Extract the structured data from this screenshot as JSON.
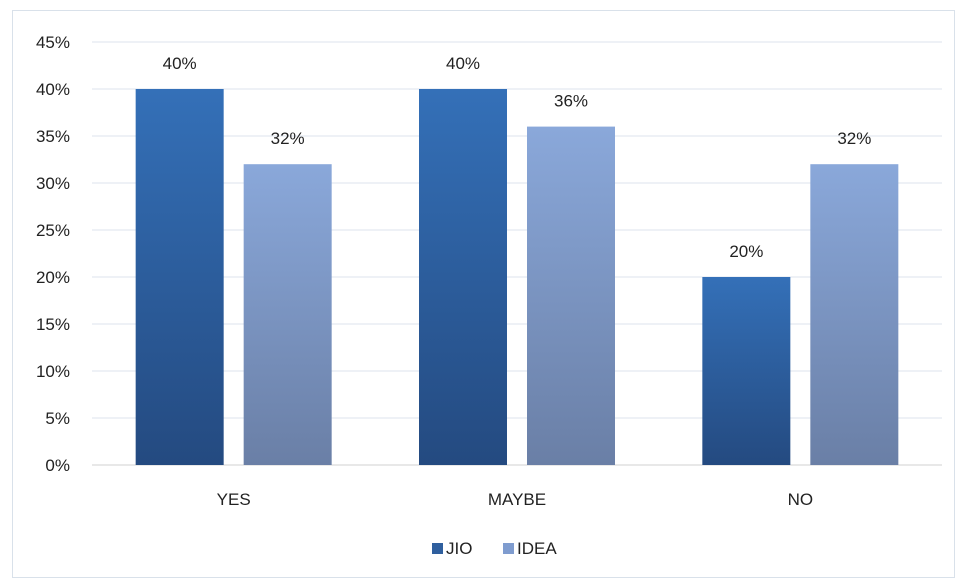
{
  "chart_data": {
    "type": "bar",
    "categories": [
      "YES",
      "MAYBE",
      "NO"
    ],
    "series": [
      {
        "name": "JIO",
        "values": [
          40,
          40,
          20
        ],
        "color": "#2f5f9e"
      },
      {
        "name": "IDEA",
        "values": [
          32,
          36,
          32
        ],
        "color": "#7f9ccf"
      }
    ],
    "value_suffix": "%",
    "ylim": [
      0,
      45
    ],
    "yticks": [
      "0%",
      "5%",
      "10%",
      "15%",
      "20%",
      "25%",
      "30%",
      "35%",
      "40%",
      "45%"
    ],
    "data_labels": [
      [
        "40%",
        "40%",
        "20%"
      ],
      [
        "32%",
        "36%",
        "32%"
      ]
    ],
    "grid": true,
    "legend_position": "bottom"
  }
}
